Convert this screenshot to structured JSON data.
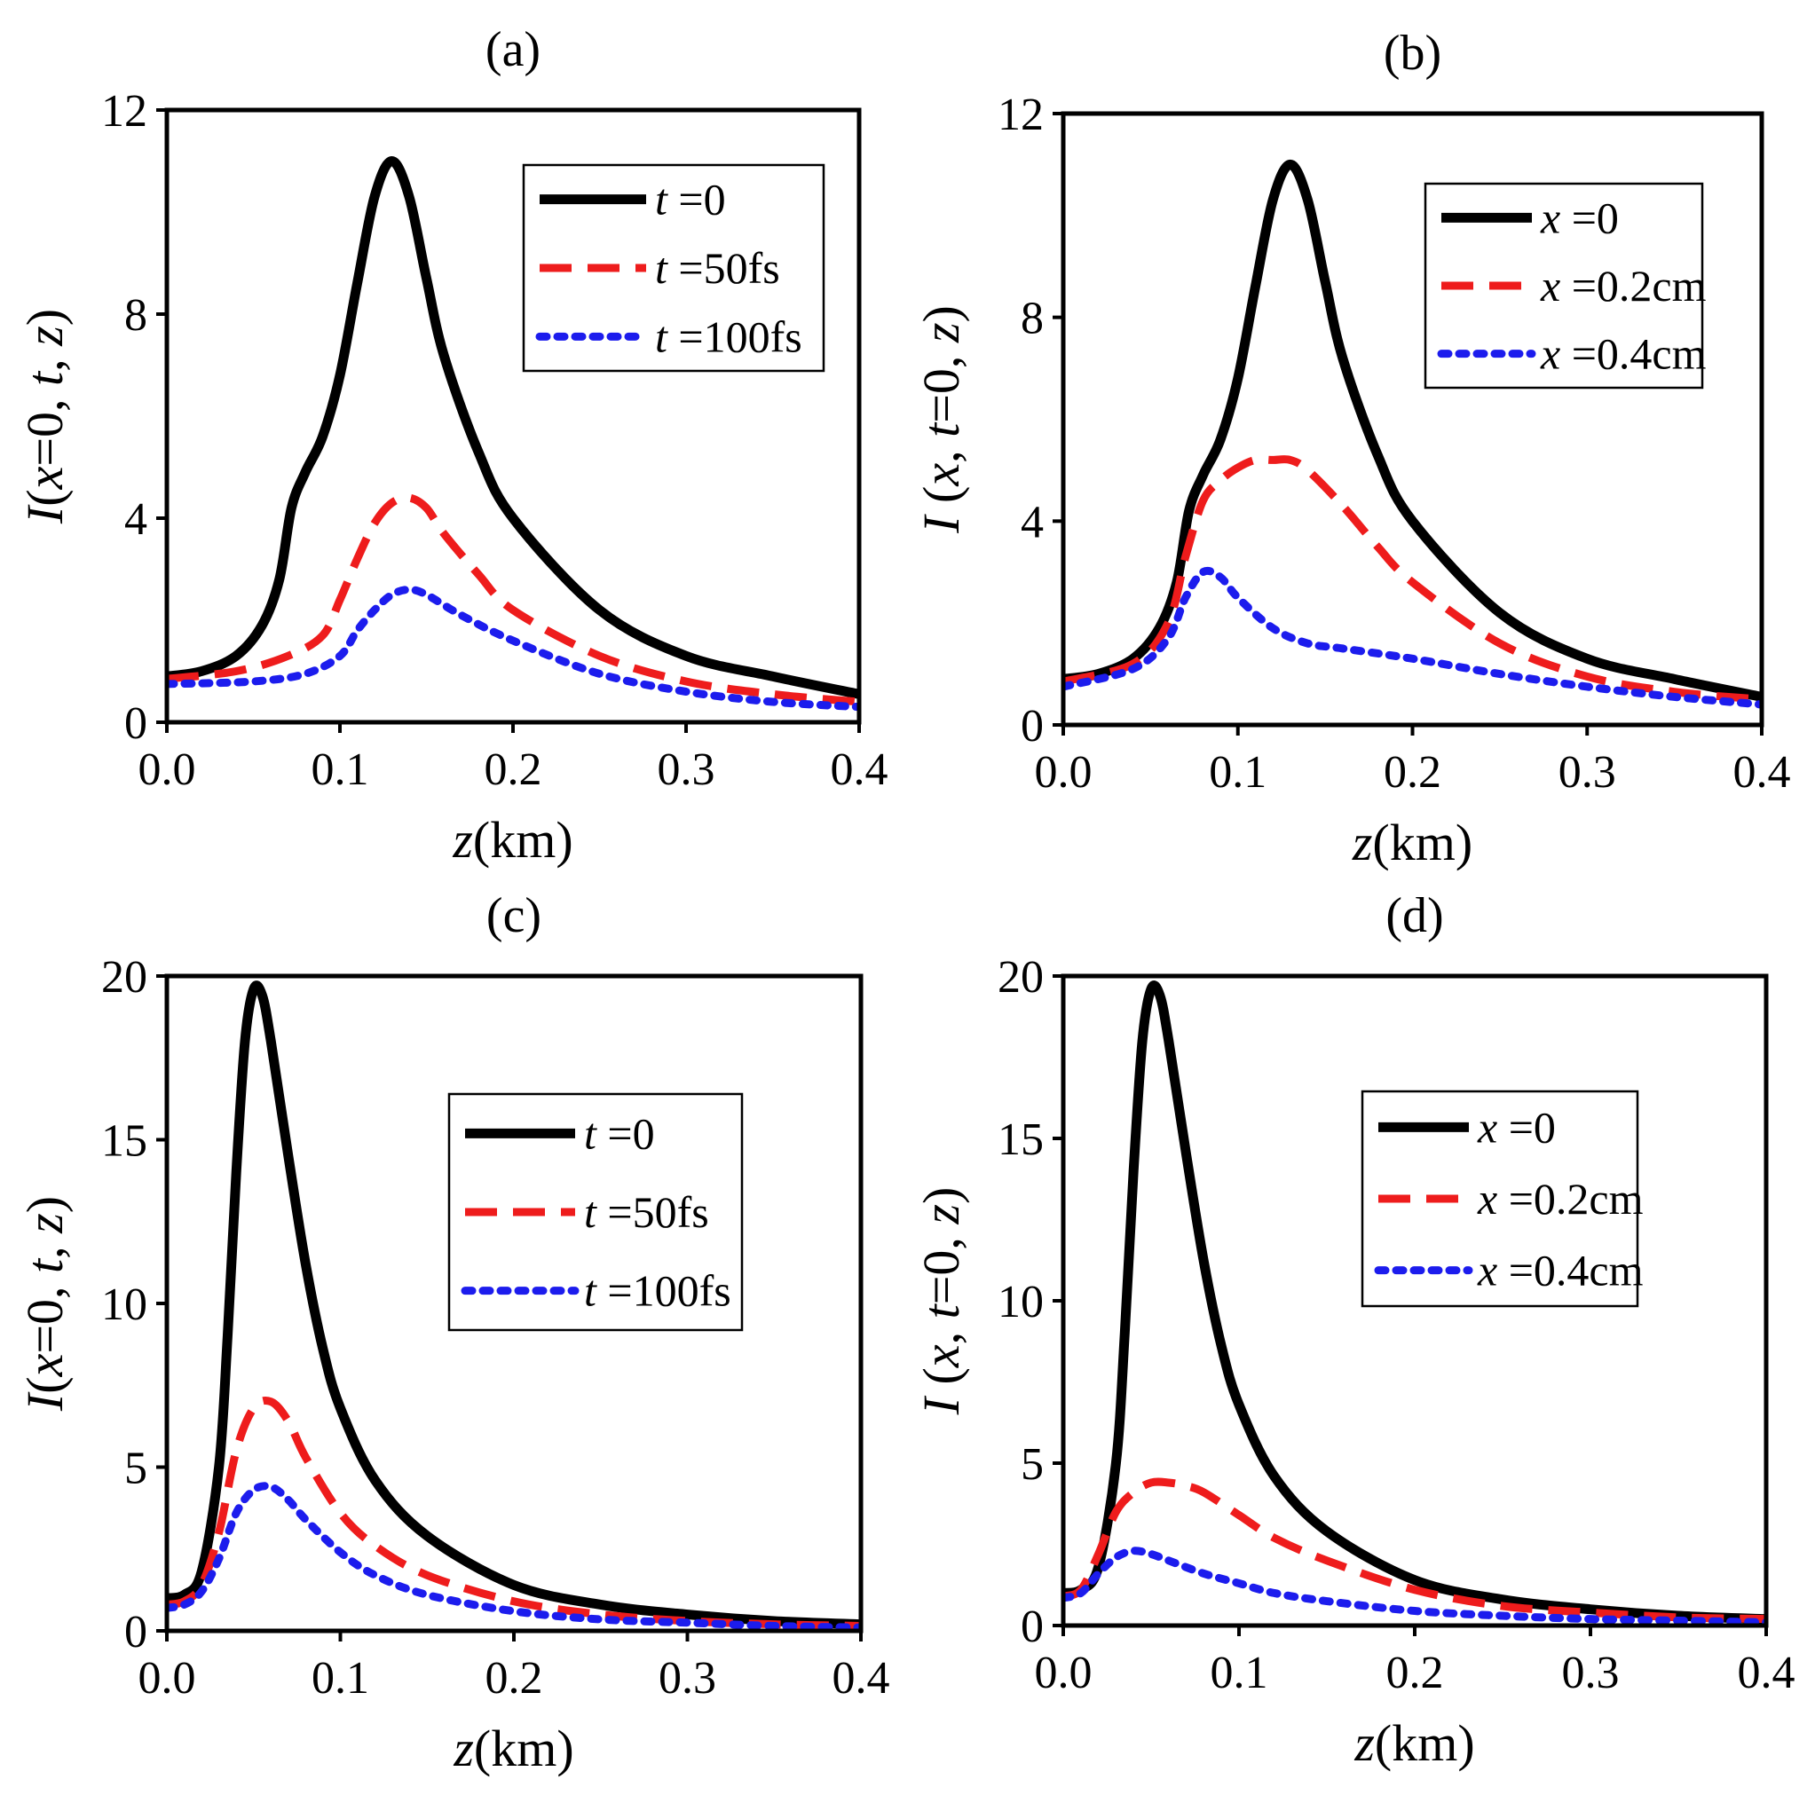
{
  "figure": {
    "colors": {
      "solid": "#000000",
      "dashed": "#ee1c1c",
      "dotted": "#1c1ced"
    }
  },
  "chart_data": [
    {
      "type": "line",
      "title": "(a)",
      "xlabel": {
        "sym": "z",
        "unit": "(km)"
      },
      "ylabel": [
        {
          "t": "I",
          "i": true
        },
        {
          "t": "(",
          "i": false
        },
        {
          "t": "x",
          "i": true
        },
        {
          "t": "=0, ",
          "i": false
        },
        {
          "t": "t",
          "i": true
        },
        {
          "t": ", ",
          "i": false
        },
        {
          "t": "z",
          "i": true
        },
        {
          "t": ")",
          "i": false
        }
      ],
      "xlim": [
        0,
        0.4
      ],
      "ylim": [
        0,
        12
      ],
      "xticks": [
        "0.0",
        "0.1",
        "0.2",
        "0.3",
        "0.4"
      ],
      "yticks": [
        "0",
        "4",
        "8",
        "12"
      ],
      "legend_position": "top-right",
      "series": [
        {
          "style": "solid",
          "legend_var": "t",
          "legend_val": " =0",
          "x": [
            0,
            0.02,
            0.04,
            0.055,
            0.065,
            0.072,
            0.08,
            0.09,
            0.1,
            0.11,
            0.12,
            0.13,
            0.14,
            0.15,
            0.16,
            0.18,
            0.2,
            0.25,
            0.3,
            0.35,
            0.4
          ],
          "y": [
            0.9,
            1.0,
            1.3,
            1.9,
            2.8,
            4.2,
            4.9,
            5.6,
            6.8,
            8.6,
            10.3,
            11.0,
            10.3,
            8.7,
            7.2,
            5.3,
            4.0,
            2.2,
            1.3,
            0.9,
            0.55
          ]
        },
        {
          "style": "dashed",
          "legend_var": "t",
          "legend_val": " =50fs",
          "x": [
            0,
            0.04,
            0.07,
            0.09,
            0.1,
            0.11,
            0.12,
            0.13,
            0.14,
            0.15,
            0.16,
            0.18,
            0.2,
            0.25,
            0.3,
            0.35,
            0.4
          ],
          "y": [
            0.85,
            1.0,
            1.3,
            1.7,
            2.4,
            3.2,
            3.9,
            4.3,
            4.4,
            4.2,
            3.7,
            2.9,
            2.2,
            1.3,
            0.8,
            0.55,
            0.4
          ]
        },
        {
          "style": "dotted",
          "legend_var": "t",
          "legend_val": " =100fs",
          "x": [
            0,
            0.05,
            0.08,
            0.1,
            0.11,
            0.12,
            0.13,
            0.14,
            0.15,
            0.17,
            0.2,
            0.25,
            0.3,
            0.35,
            0.4
          ],
          "y": [
            0.75,
            0.8,
            0.95,
            1.3,
            1.8,
            2.2,
            2.5,
            2.6,
            2.5,
            2.1,
            1.6,
            0.95,
            0.6,
            0.4,
            0.3
          ]
        }
      ]
    },
    {
      "type": "line",
      "title": "(b)",
      "xlabel": {
        "sym": "z",
        "unit": "(km)"
      },
      "ylabel": [
        {
          "t": "I",
          "i": true
        },
        {
          "t": " (",
          "i": false
        },
        {
          "t": "x",
          "i": true
        },
        {
          "t": ", ",
          "i": false
        },
        {
          "t": "t",
          "i": true
        },
        {
          "t": "=0, ",
          "i": false
        },
        {
          "t": "z",
          "i": true
        },
        {
          "t": ")",
          "i": false
        }
      ],
      "xlim": [
        0,
        0.4
      ],
      "ylim": [
        0,
        12
      ],
      "xticks": [
        "0.0",
        "0.1",
        "0.2",
        "0.3",
        "0.4"
      ],
      "yticks": [
        "0",
        "4",
        "8",
        "12"
      ],
      "legend_position": "top-right",
      "series": [
        {
          "style": "solid",
          "legend_var": "x",
          "legend_val": " =0",
          "x": [
            0,
            0.02,
            0.04,
            0.055,
            0.065,
            0.072,
            0.08,
            0.09,
            0.1,
            0.11,
            0.12,
            0.13,
            0.14,
            0.15,
            0.16,
            0.18,
            0.2,
            0.25,
            0.3,
            0.35,
            0.4
          ],
          "y": [
            0.9,
            1.0,
            1.3,
            1.9,
            2.8,
            4.2,
            4.9,
            5.6,
            6.8,
            8.6,
            10.3,
            11.0,
            10.3,
            8.7,
            7.2,
            5.3,
            4.0,
            2.2,
            1.3,
            0.9,
            0.55
          ]
        },
        {
          "style": "dashed",
          "legend_var": "x",
          "legend_val": " =0.2cm",
          "x": [
            0,
            0.04,
            0.06,
            0.07,
            0.08,
            0.09,
            0.1,
            0.11,
            0.12,
            0.13,
            0.14,
            0.16,
            0.18,
            0.2,
            0.25,
            0.3,
            0.35,
            0.4
          ],
          "y": [
            0.85,
            1.2,
            2.0,
            3.3,
            4.4,
            4.8,
            5.05,
            5.2,
            5.2,
            5.2,
            5.0,
            4.3,
            3.5,
            2.8,
            1.6,
            0.95,
            0.65,
            0.5
          ]
        },
        {
          "style": "dotted",
          "legend_var": "x",
          "legend_val": " =0.4cm",
          "x": [
            0,
            0.04,
            0.06,
            0.07,
            0.08,
            0.09,
            0.1,
            0.12,
            0.14,
            0.16,
            0.2,
            0.25,
            0.3,
            0.35,
            0.4
          ],
          "y": [
            0.75,
            1.1,
            1.7,
            2.5,
            3.0,
            2.9,
            2.5,
            1.9,
            1.6,
            1.5,
            1.3,
            1.0,
            0.75,
            0.55,
            0.4
          ]
        }
      ]
    },
    {
      "type": "line",
      "title": "(c)",
      "xlabel": {
        "sym": "z",
        "unit": "(km)"
      },
      "ylabel": [
        {
          "t": "I",
          "i": true
        },
        {
          "t": "(",
          "i": false
        },
        {
          "t": "x",
          "i": true
        },
        {
          "t": "=0, ",
          "i": false
        },
        {
          "t": "t",
          "i": true
        },
        {
          "t": ", ",
          "i": false
        },
        {
          "t": "z",
          "i": true
        },
        {
          "t": ")",
          "i": false
        }
      ],
      "xlim": [
        0,
        0.4
      ],
      "ylim": [
        0,
        20
      ],
      "xticks": [
        "0.0",
        "0.1",
        "0.2",
        "0.3",
        "0.4"
      ],
      "yticks": [
        "0",
        "5",
        "10",
        "15",
        "20"
      ],
      "legend_position": "center-right",
      "series": [
        {
          "style": "solid",
          "legend_var": "t",
          "legend_val": " =0",
          "x": [
            0,
            0.01,
            0.02,
            0.03,
            0.035,
            0.04,
            0.045,
            0.05,
            0.055,
            0.06,
            0.07,
            0.08,
            0.09,
            0.1,
            0.12,
            0.15,
            0.2,
            0.25,
            0.3,
            0.35,
            0.4
          ],
          "y": [
            1.0,
            1.1,
            1.8,
            5.0,
            9.0,
            14.0,
            18.0,
            19.6,
            19.4,
            18.0,
            14.5,
            11.2,
            8.6,
            6.8,
            4.6,
            2.9,
            1.4,
            0.8,
            0.5,
            0.3,
            0.2
          ]
        },
        {
          "style": "dashed",
          "legend_var": "t",
          "legend_val": " =50fs",
          "x": [
            0,
            0.01,
            0.02,
            0.03,
            0.04,
            0.05,
            0.06,
            0.07,
            0.08,
            0.1,
            0.12,
            0.15,
            0.2,
            0.25,
            0.3,
            0.35,
            0.4
          ],
          "y": [
            0.8,
            0.9,
            1.4,
            3.0,
            5.5,
            6.8,
            7.0,
            6.4,
            5.3,
            3.6,
            2.6,
            1.7,
            0.9,
            0.5,
            0.3,
            0.2,
            0.15
          ]
        },
        {
          "style": "dotted",
          "legend_var": "t",
          "legend_val": " =100fs",
          "x": [
            0,
            0.01,
            0.02,
            0.03,
            0.04,
            0.05,
            0.06,
            0.07,
            0.08,
            0.1,
            0.12,
            0.15,
            0.2,
            0.25,
            0.3,
            0.35,
            0.4
          ],
          "y": [
            0.7,
            0.8,
            1.2,
            2.2,
            3.6,
            4.3,
            4.4,
            4.0,
            3.4,
            2.4,
            1.7,
            1.1,
            0.6,
            0.35,
            0.25,
            0.15,
            0.1
          ]
        }
      ]
    },
    {
      "type": "line",
      "title": "(d)",
      "xlabel": {
        "sym": "z",
        "unit": "(km)"
      },
      "ylabel": [
        {
          "t": "I",
          "i": true
        },
        {
          "t": " (",
          "i": false
        },
        {
          "t": "x",
          "i": true
        },
        {
          "t": ", ",
          "i": false
        },
        {
          "t": "t",
          "i": true
        },
        {
          "t": "=0, ",
          "i": false
        },
        {
          "t": "z",
          "i": true
        },
        {
          "t": ")",
          "i": false
        }
      ],
      "xlim": [
        0,
        0.4
      ],
      "ylim": [
        0,
        20
      ],
      "xticks": [
        "0.0",
        "0.1",
        "0.2",
        "0.3",
        "0.4"
      ],
      "yticks": [
        "0",
        "5",
        "10",
        "15",
        "20"
      ],
      "legend_position": "top-right",
      "series": [
        {
          "style": "solid",
          "legend_var": "x",
          "legend_val": " =0",
          "x": [
            0,
            0.01,
            0.02,
            0.03,
            0.035,
            0.04,
            0.045,
            0.05,
            0.055,
            0.06,
            0.07,
            0.08,
            0.09,
            0.1,
            0.12,
            0.15,
            0.2,
            0.25,
            0.3,
            0.35,
            0.4
          ],
          "y": [
            1.0,
            1.1,
            1.8,
            5.0,
            9.0,
            14.0,
            18.0,
            19.6,
            19.4,
            18.0,
            14.5,
            11.2,
            8.6,
            6.8,
            4.6,
            2.9,
            1.4,
            0.8,
            0.5,
            0.3,
            0.2
          ]
        },
        {
          "style": "dashed",
          "legend_var": "x",
          "legend_val": " =0.2cm",
          "x": [
            0,
            0.01,
            0.02,
            0.03,
            0.04,
            0.05,
            0.06,
            0.07,
            0.08,
            0.1,
            0.12,
            0.15,
            0.2,
            0.25,
            0.3,
            0.35,
            0.4
          ],
          "y": [
            0.9,
            1.1,
            2.2,
            3.5,
            4.1,
            4.4,
            4.4,
            4.3,
            4.1,
            3.4,
            2.7,
            2.0,
            1.1,
            0.6,
            0.4,
            0.25,
            0.2
          ]
        },
        {
          "style": "dotted",
          "legend_var": "x",
          "legend_val": " =0.4cm",
          "x": [
            0,
            0.01,
            0.02,
            0.03,
            0.04,
            0.05,
            0.06,
            0.08,
            0.1,
            0.12,
            0.15,
            0.2,
            0.25,
            0.3,
            0.35,
            0.4
          ],
          "y": [
            0.85,
            1.0,
            1.6,
            2.1,
            2.3,
            2.2,
            2.0,
            1.6,
            1.3,
            1.0,
            0.75,
            0.45,
            0.3,
            0.2,
            0.15,
            0.1
          ]
        }
      ]
    }
  ]
}
